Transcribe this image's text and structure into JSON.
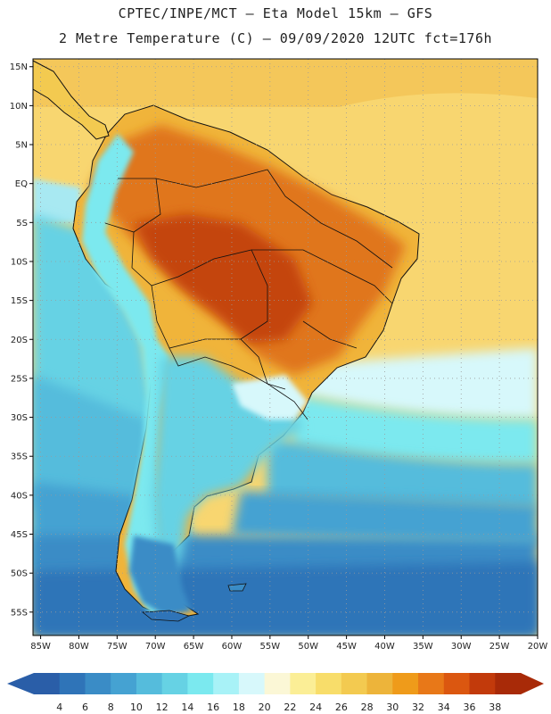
{
  "header": {
    "line1": "CPTEC/INPE/MCT –  Eta Model 15km – GFS",
    "line2": "2 Metre Temperature (C) – 09/09/2020 12UTC fct=176h"
  },
  "map": {
    "lon_range": [
      -86,
      -20
    ],
    "lat_range": [
      -58,
      16
    ],
    "lat_labels": [
      "15N",
      "10N",
      "5N",
      "EQ",
      "5S",
      "10S",
      "15S",
      "20S",
      "25S",
      "30S",
      "35S",
      "40S",
      "45S",
      "50S",
      "55S"
    ],
    "lon_labels": [
      "85W",
      "80W",
      "75W",
      "70W",
      "65W",
      "60W",
      "55W",
      "50W",
      "45W",
      "40W",
      "35W",
      "30W",
      "25W",
      "20W"
    ],
    "colors": {
      "frame": "#000000",
      "coast": "#111111",
      "grid": "#9a9a9a"
    }
  },
  "colorbar": {
    "labels": [
      "4",
      "6",
      "8",
      "10",
      "12",
      "14",
      "16",
      "18",
      "20",
      "22",
      "24",
      "26",
      "28",
      "30",
      "32",
      "34",
      "36",
      "38"
    ],
    "colors": [
      "#2a5ea8",
      "#2f74b8",
      "#3a8cc6",
      "#45a2d2",
      "#55bcdc",
      "#66d2e4",
      "#7be9ef",
      "#a8f2f7",
      "#d7f8fb",
      "#fbf7d6",
      "#fbee96",
      "#f8dd6a",
      "#f3ca50",
      "#edb43a",
      "#ef9b1a",
      "#e87818",
      "#db5710",
      "#c23a0b",
      "#a82a08"
    ],
    "low_arrow_color": "#2a5ea8",
    "high_arrow_color": "#a82a08"
  }
}
